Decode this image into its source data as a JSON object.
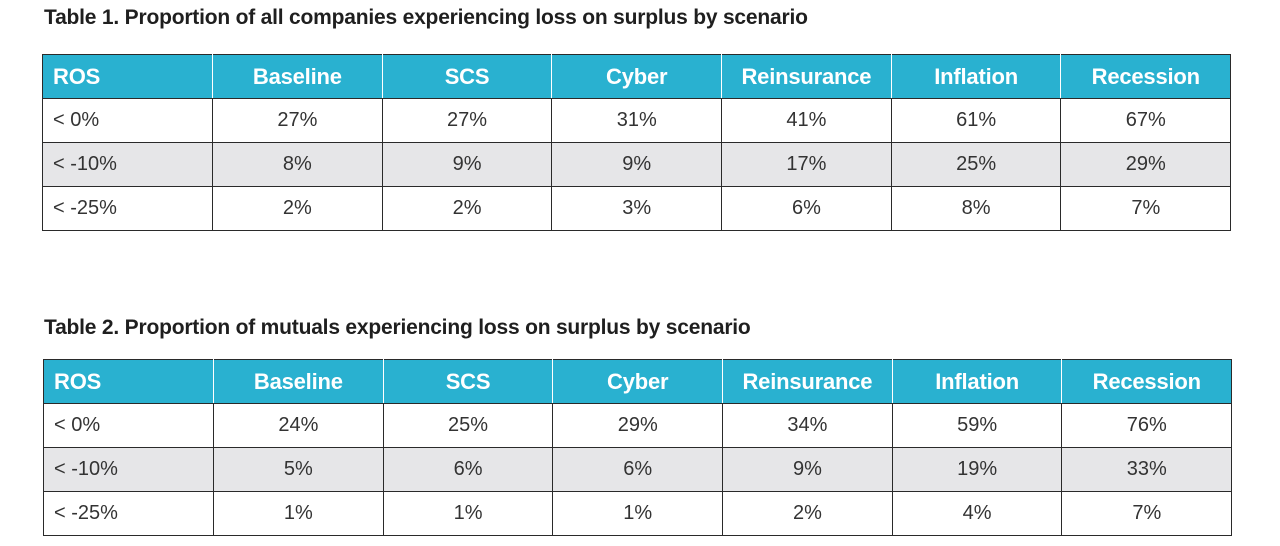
{
  "tables": [
    {
      "caption": "Table 1. Proportion of all companies experiencing loss on surplus by scenario",
      "headers": [
        "ROS",
        "Baseline",
        "SCS",
        "Cyber",
        "Reinsurance",
        "Inflation",
        "Recession"
      ],
      "rows": [
        [
          "< 0%",
          "27%",
          "27%",
          "31%",
          "41%",
          "61%",
          "67%"
        ],
        [
          "< -10%",
          "8%",
          "9%",
          "9%",
          "17%",
          "25%",
          "29%"
        ],
        [
          "< -25%",
          "2%",
          "2%",
          "3%",
          "6%",
          "8%",
          "7%"
        ]
      ]
    },
    {
      "caption": "Table 2. Proportion of mutuals experiencing loss on surplus by scenario",
      "headers": [
        "ROS",
        "Baseline",
        "SCS",
        "Cyber",
        "Reinsurance",
        "Inflation",
        "Recession"
      ],
      "rows": [
        [
          "< 0%",
          "24%",
          "25%",
          "29%",
          "34%",
          "59%",
          "76%"
        ],
        [
          "< -10%",
          "5%",
          "6%",
          "6%",
          "9%",
          "19%",
          "33%"
        ],
        [
          "< -25%",
          "1%",
          "1%",
          "1%",
          "2%",
          "4%",
          "7%"
        ]
      ]
    }
  ],
  "colors": {
    "header_background": "#29b1d0",
    "header_text": "#ffffff",
    "shaded_row": "#e6e6e8",
    "border": "#2a2a2a"
  }
}
